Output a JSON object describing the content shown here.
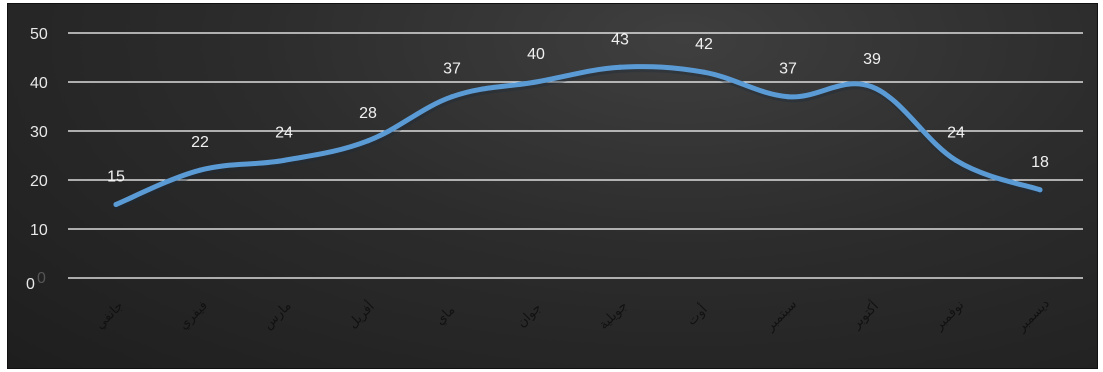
{
  "chart_data": {
    "type": "line",
    "categories": [
      "جانفي",
      "فيفري",
      "مارس",
      "أفريل",
      "ماي",
      "جوان",
      "جويلية",
      "أوت",
      "سبتمبر",
      "أكتوبر",
      "نوفمبر",
      "ديسمبر"
    ],
    "series": [
      {
        "values": [
          15,
          22,
          24,
          28,
          37,
          40,
          43,
          42,
          37,
          39,
          24,
          18
        ]
      }
    ],
    "data_labels": [
      "15",
      "22",
      "24",
      "28",
      "37",
      "40",
      "43",
      "42",
      "37",
      "39",
      "24",
      "18"
    ],
    "ylim": [
      0,
      50
    ],
    "yticks": [
      0,
      10,
      20,
      30,
      40,
      50
    ],
    "yticklabels": [
      "0",
      "10",
      "20",
      "30",
      "40",
      "50"
    ],
    "extra_zero_label": "0",
    "grid": true,
    "legend": "none",
    "colors": {
      "line": "#5b9bd5",
      "background": "#2b2b2b",
      "gridline": "#ffffff"
    }
  }
}
